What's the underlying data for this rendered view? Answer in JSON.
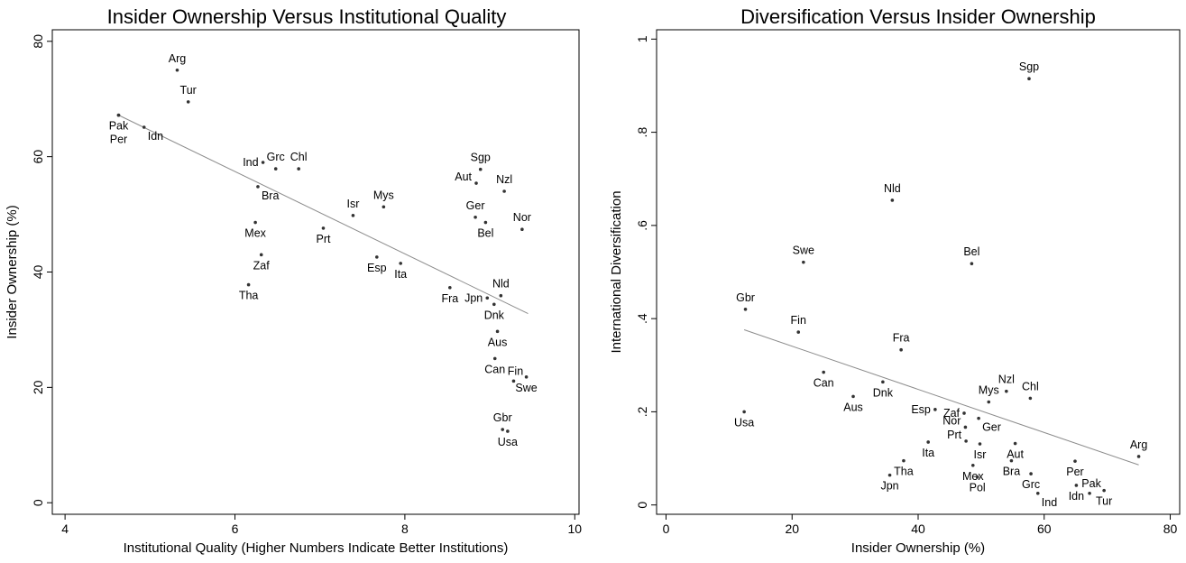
{
  "chart_data": [
    {
      "type": "scatter",
      "title": "Insider Ownership Versus Institutional Quality",
      "xlabel": "Institutional Quality (Higher Numbers Indicate Better Institutions)",
      "ylabel": "Insider Ownership (%)",
      "xlim": [
        3.85,
        10.05
      ],
      "ylim": [
        -2,
        82
      ],
      "xticks": [
        "4",
        "6",
        "8",
        "10"
      ],
      "yticks": [
        "0",
        "20",
        "40",
        "60",
        "80"
      ],
      "xtick_values": [
        4,
        6,
        8,
        10
      ],
      "ytick_values": [
        0,
        20,
        40,
        60,
        80
      ],
      "grid": false,
      "points": [
        {
          "label": "Arg",
          "x": 5.32,
          "y": 75.0,
          "lpos": "above"
        },
        {
          "label": "Tur",
          "x": 5.45,
          "y": 69.5,
          "lpos": "above"
        },
        {
          "label": "Pak",
          "x": 4.63,
          "y": 67.2,
          "lpos": "below"
        },
        {
          "label": "Per",
          "x": 4.63,
          "y": 67.2,
          "lpos": "below2"
        },
        {
          "label": "Idn",
          "x": 4.93,
          "y": 65.1,
          "lpos": "below-right"
        },
        {
          "label": "Ind",
          "x": 6.33,
          "y": 59.0,
          "lpos": "left"
        },
        {
          "label": "Grc",
          "x": 6.48,
          "y": 57.9,
          "lpos": "above"
        },
        {
          "label": "Chl",
          "x": 6.75,
          "y": 57.9,
          "lpos": "above"
        },
        {
          "label": "Bra",
          "x": 6.27,
          "y": 54.8,
          "lpos": "below-right"
        },
        {
          "label": "Isr",
          "x": 7.39,
          "y": 49.8,
          "lpos": "above"
        },
        {
          "label": "Mys",
          "x": 7.75,
          "y": 51.3,
          "lpos": "above"
        },
        {
          "label": "Prt",
          "x": 7.04,
          "y": 47.6,
          "lpos": "below"
        },
        {
          "label": "Mex",
          "x": 6.24,
          "y": 48.6,
          "lpos": "below"
        },
        {
          "label": "Zaf",
          "x": 6.31,
          "y": 43.0,
          "lpos": "below"
        },
        {
          "label": "Tha",
          "x": 6.16,
          "y": 37.8,
          "lpos": "below"
        },
        {
          "label": "Esp",
          "x": 7.67,
          "y": 42.6,
          "lpos": "below"
        },
        {
          "label": "Ita",
          "x": 7.95,
          "y": 41.5,
          "lpos": "below"
        },
        {
          "label": "Sgp",
          "x": 8.89,
          "y": 57.8,
          "lpos": "above"
        },
        {
          "label": "Aut",
          "x": 8.84,
          "y": 55.4,
          "lpos": "left-up"
        },
        {
          "label": "Nzl",
          "x": 9.17,
          "y": 54.0,
          "lpos": "above"
        },
        {
          "label": "Ger",
          "x": 8.83,
          "y": 49.5,
          "lpos": "above"
        },
        {
          "label": "Bel",
          "x": 8.95,
          "y": 48.6,
          "lpos": "below"
        },
        {
          "label": "Nor",
          "x": 9.38,
          "y": 47.4,
          "lpos": "above"
        },
        {
          "label": "Nld",
          "x": 9.13,
          "y": 35.9,
          "lpos": "above"
        },
        {
          "label": "Fra",
          "x": 8.53,
          "y": 37.3,
          "lpos": "below"
        },
        {
          "label": "Jpn",
          "x": 8.97,
          "y": 35.5,
          "lpos": "left"
        },
        {
          "label": "Dnk",
          "x": 9.05,
          "y": 34.4,
          "lpos": "below"
        },
        {
          "label": "Aus",
          "x": 9.09,
          "y": 29.7,
          "lpos": "below"
        },
        {
          "label": "Can",
          "x": 9.06,
          "y": 25.0,
          "lpos": "below"
        },
        {
          "label": "Fin",
          "x": 9.28,
          "y": 21.1,
          "lpos": "above-right"
        },
        {
          "label": "Swe",
          "x": 9.43,
          "y": 21.8,
          "lpos": "below"
        },
        {
          "label": "Gbr",
          "x": 9.15,
          "y": 12.7,
          "lpos": "above"
        },
        {
          "label": "Usa",
          "x": 9.21,
          "y": 12.4,
          "lpos": "below"
        }
      ],
      "fit_line": {
        "x1": 4.63,
        "y1": 67.2,
        "x2": 9.45,
        "y2": 32.8
      }
    },
    {
      "type": "scatter",
      "title": "Diversification Versus Insider Ownership",
      "xlabel": "Insider Ownership (%)",
      "ylabel": "International Diversification",
      "xlim": [
        -1.5,
        81.5
      ],
      "ylim": [
        -0.02,
        1.02
      ],
      "xticks": [
        "0",
        "20",
        "40",
        "60",
        "80"
      ],
      "yticks": [
        "0",
        ".2",
        ".4",
        ".6",
        ".8",
        "1"
      ],
      "xtick_values": [
        0,
        20,
        40,
        60,
        80
      ],
      "ytick_values": [
        0,
        0.2,
        0.4,
        0.6,
        0.8,
        1
      ],
      "grid": false,
      "points": [
        {
          "label": "Sgp",
          "x": 57.6,
          "y": 0.915,
          "lpos": "above"
        },
        {
          "label": "Nld",
          "x": 35.9,
          "y": 0.654,
          "lpos": "above"
        },
        {
          "label": "Swe",
          "x": 21.8,
          "y": 0.521,
          "lpos": "above"
        },
        {
          "label": "Bel",
          "x": 48.5,
          "y": 0.518,
          "lpos": "above"
        },
        {
          "label": "Gbr",
          "x": 12.6,
          "y": 0.42,
          "lpos": "above"
        },
        {
          "label": "Fin",
          "x": 21.0,
          "y": 0.371,
          "lpos": "above"
        },
        {
          "label": "Fra",
          "x": 37.3,
          "y": 0.333,
          "lpos": "above"
        },
        {
          "label": "Can",
          "x": 25.0,
          "y": 0.285,
          "lpos": "below"
        },
        {
          "label": "Dnk",
          "x": 34.4,
          "y": 0.264,
          "lpos": "below"
        },
        {
          "label": "Aus",
          "x": 29.7,
          "y": 0.233,
          "lpos": "below"
        },
        {
          "label": "Usa",
          "x": 12.4,
          "y": 0.2,
          "lpos": "below"
        },
        {
          "label": "Nzl",
          "x": 54.0,
          "y": 0.244,
          "lpos": "above"
        },
        {
          "label": "Mys",
          "x": 51.2,
          "y": 0.221,
          "lpos": "above"
        },
        {
          "label": "Chl",
          "x": 57.8,
          "y": 0.229,
          "lpos": "above"
        },
        {
          "label": "Esp",
          "x": 42.7,
          "y": 0.205,
          "lpos": "left"
        },
        {
          "label": "Zaf",
          "x": 47.3,
          "y": 0.197,
          "lpos": "left"
        },
        {
          "label": "Nor",
          "x": 47.5,
          "y": 0.167,
          "lpos": "left-up"
        },
        {
          "label": "Ger",
          "x": 49.6,
          "y": 0.186,
          "lpos": "below-right"
        },
        {
          "label": "Prt",
          "x": 47.6,
          "y": 0.137,
          "lpos": "left-up"
        },
        {
          "label": "Ita",
          "x": 41.6,
          "y": 0.135,
          "lpos": "below"
        },
        {
          "label": "Aut",
          "x": 55.4,
          "y": 0.132,
          "lpos": "below"
        },
        {
          "label": "Isr",
          "x": 49.8,
          "y": 0.131,
          "lpos": "below"
        },
        {
          "label": "Tha",
          "x": 37.7,
          "y": 0.095,
          "lpos": "below"
        },
        {
          "label": "Per",
          "x": 64.9,
          "y": 0.094,
          "lpos": "below"
        },
        {
          "label": "Arg",
          "x": 75.0,
          "y": 0.104,
          "lpos": "above"
        },
        {
          "label": "Bra",
          "x": 54.8,
          "y": 0.095,
          "lpos": "below"
        },
        {
          "label": "Jpn",
          "x": 35.5,
          "y": 0.064,
          "lpos": "below"
        },
        {
          "label": "Mex",
          "x": 48.7,
          "y": 0.085,
          "lpos": "below"
        },
        {
          "label": "Pol",
          "x": 49.4,
          "y": 0.06,
          "lpos": "below"
        },
        {
          "label": "Grc",
          "x": 57.9,
          "y": 0.067,
          "lpos": "below"
        },
        {
          "label": "Idn",
          "x": 65.1,
          "y": 0.042,
          "lpos": "below"
        },
        {
          "label": "Pak",
          "x": 67.2,
          "y": 0.025,
          "lpos": "above-right"
        },
        {
          "label": "Ind",
          "x": 59.0,
          "y": 0.025,
          "lpos": "below-right"
        },
        {
          "label": "Tur",
          "x": 69.5,
          "y": 0.031,
          "lpos": "below"
        }
      ],
      "fit_line": {
        "x1": 12.4,
        "y1": 0.376,
        "x2": 75.0,
        "y2": 0.086
      }
    }
  ]
}
